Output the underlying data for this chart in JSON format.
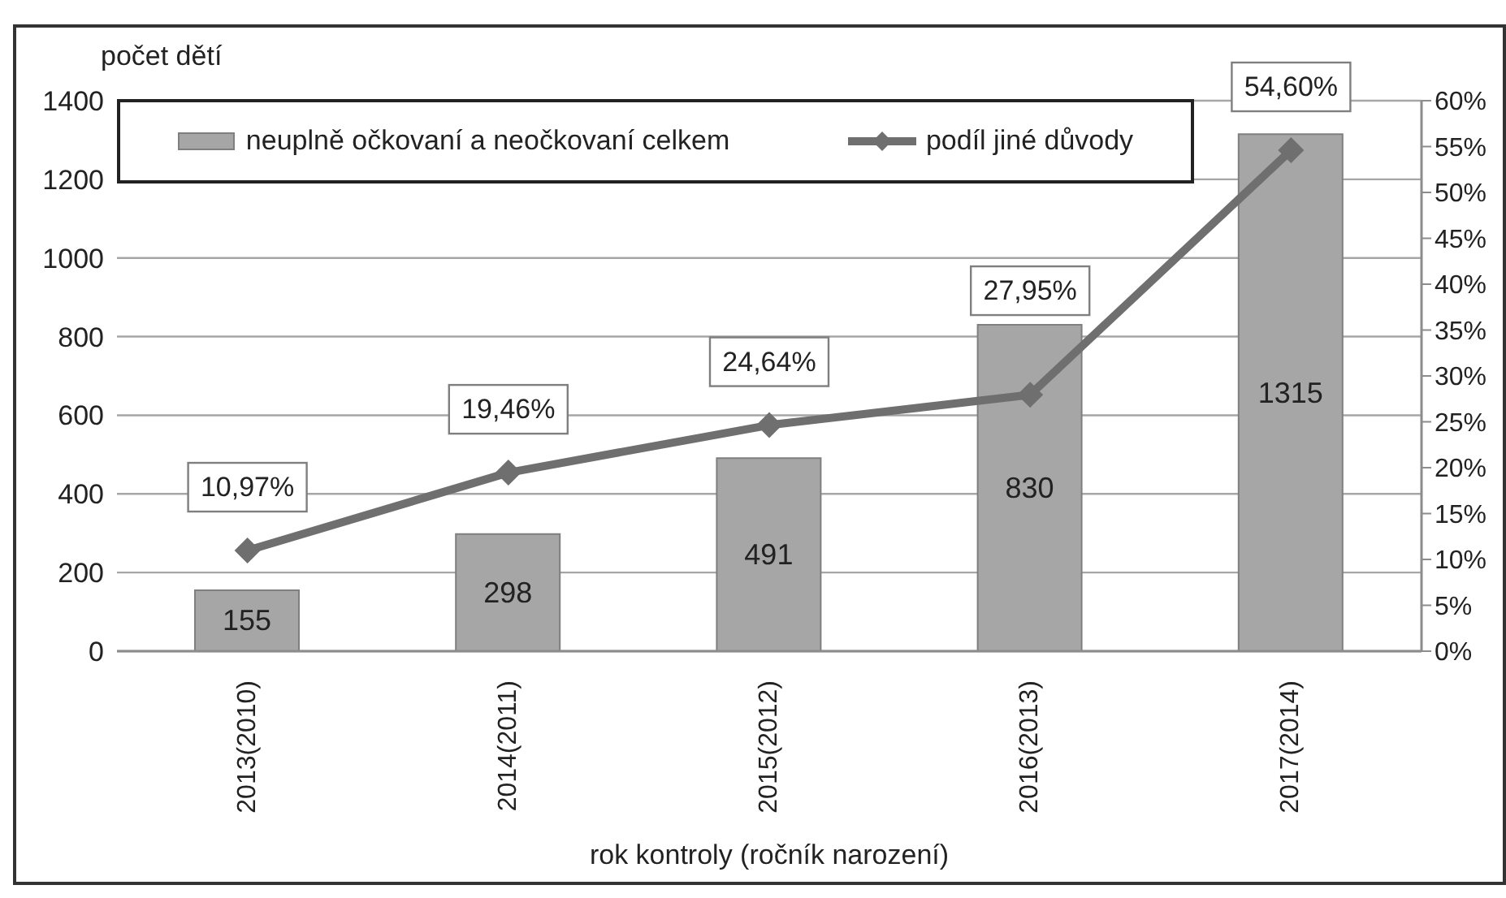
{
  "chart_data": {
    "type": "bar",
    "ylabel": "počet dětí",
    "xlabel": "rok kontroly (ročník narození)",
    "categories": [
      "2013(2010)",
      "2014(2011)",
      "2015(2012)",
      "2016(2013)",
      "2017(2014)"
    ],
    "series": [
      {
        "name": "neuplně očkovaní a neočkovaní celkem",
        "color": "#a6a6a6",
        "values": [
          155,
          298,
          491,
          830,
          1315
        ],
        "value_labels": [
          "155",
          "298",
          "491",
          "830",
          "1315"
        ]
      },
      {
        "name": "podíl jiné důvody",
        "type": "line",
        "axis": "y2",
        "color": "#6f6f6f",
        "values": [
          10.97,
          19.46,
          24.64,
          27.95,
          54.6
        ],
        "value_labels": [
          "10,97%",
          "19,46%",
          "24,64%",
          "27,95%",
          "54,60%"
        ]
      }
    ],
    "ylim": [
      0,
      1400
    ],
    "yticks": [
      0,
      200,
      400,
      600,
      800,
      1000,
      1200,
      1400
    ],
    "y2lim": [
      0,
      60
    ],
    "y2ticks": [
      {
        "value": 0,
        "label": "0%"
      },
      {
        "value": 5,
        "label": "5%"
      },
      {
        "value": 10,
        "label": "10%"
      },
      {
        "value": 15,
        "label": "15%"
      },
      {
        "value": 20,
        "label": "20%"
      },
      {
        "value": 25,
        "label": "25%"
      },
      {
        "value": 30,
        "label": "30%"
      },
      {
        "value": 35,
        "label": "35%"
      },
      {
        "value": 40,
        "label": "40%"
      },
      {
        "value": 45,
        "label": "45%"
      },
      {
        "value": 50,
        "label": "50%"
      },
      {
        "value": 55,
        "label": "55%"
      },
      {
        "value": 60,
        "label": "60%"
      }
    ],
    "grid": "y",
    "legend": "top",
    "marker": "diamond",
    "line_style": "solid"
  }
}
